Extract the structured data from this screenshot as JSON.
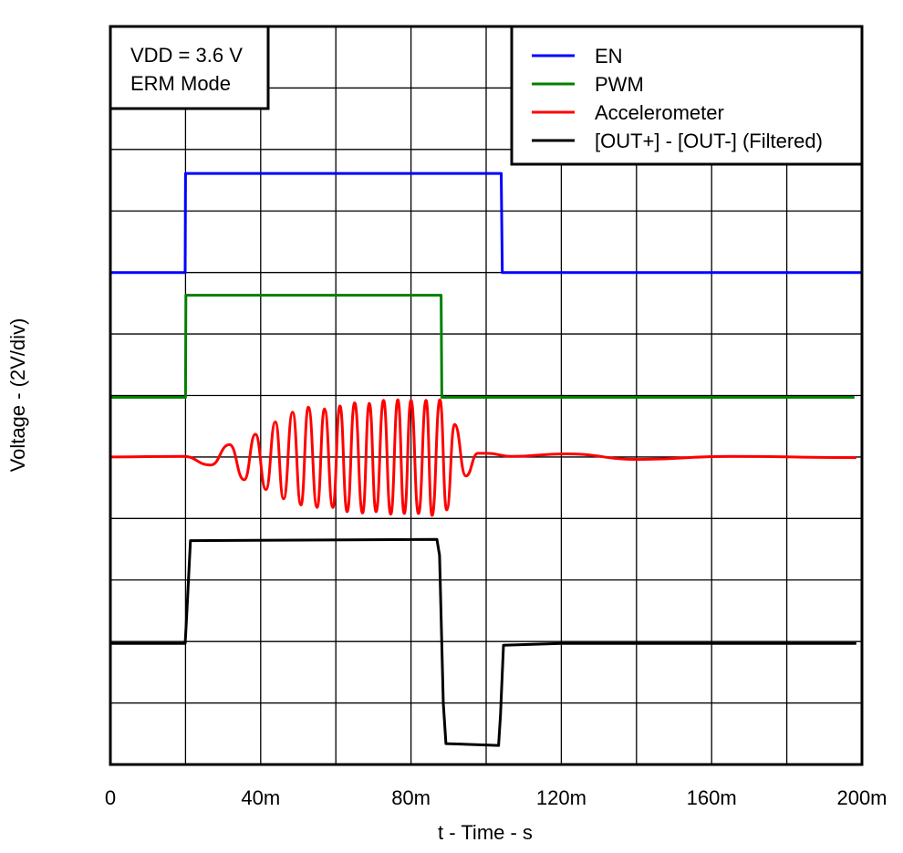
{
  "chart_data": {
    "type": "line",
    "title": "",
    "xlabel": "t - Time - s",
    "ylabel": "Voltage - (2V/div)",
    "xlim": [
      0,
      200
    ],
    "ylim_divisions": [
      0,
      12
    ],
    "x_ticks": [
      {
        "value": 0,
        "label": "0"
      },
      {
        "value": 40,
        "label": "40m"
      },
      {
        "value": 80,
        "label": "80m"
      },
      {
        "value": 120,
        "label": "120m"
      },
      {
        "value": 160,
        "label": "160m"
      },
      {
        "value": 200,
        "label": "200m"
      }
    ],
    "x_grid_step": 20,
    "y_grid_step": 1,
    "grid": true,
    "legend_position": "top-right",
    "annotation": [
      "VDD = 3.6 V",
      "ERM Mode"
    ],
    "series": [
      {
        "name": "EN",
        "color": "#0000FF",
        "smooth": false,
        "points": [
          [
            0,
            8.0
          ],
          [
            19.9,
            8.0
          ],
          [
            20.0,
            9.61
          ],
          [
            104.0,
            9.61
          ],
          [
            104.3,
            8.0
          ],
          [
            200,
            8.0
          ]
        ]
      },
      {
        "name": "PWM",
        "color": "#008000",
        "smooth": false,
        "points": [
          [
            0,
            5.97
          ],
          [
            20.0,
            5.97
          ],
          [
            20.1,
            7.63
          ],
          [
            88.0,
            7.63
          ],
          [
            88.2,
            5.97
          ],
          [
            198,
            5.97
          ]
        ]
      },
      {
        "name": "Accelerometer",
        "color": "#FF0000",
        "smooth": true,
        "points": [
          [
            0,
            5.0
          ],
          [
            19.4,
            5.01
          ],
          [
            26.7,
            4.87
          ],
          [
            31.7,
            5.2
          ],
          [
            35.6,
            4.63
          ],
          [
            38.6,
            5.37
          ],
          [
            41.4,
            4.47
          ],
          [
            43.9,
            5.57
          ],
          [
            46.1,
            4.32
          ],
          [
            48.5,
            5.73
          ],
          [
            50.7,
            4.22
          ],
          [
            52.7,
            5.81
          ],
          [
            55.0,
            4.18
          ],
          [
            57.0,
            5.78
          ],
          [
            59.2,
            4.18
          ],
          [
            61.1,
            5.83
          ],
          [
            63.0,
            4.11
          ],
          [
            65.0,
            5.88
          ],
          [
            67.1,
            4.09
          ],
          [
            68.9,
            5.87
          ],
          [
            70.7,
            4.11
          ],
          [
            72.7,
            5.92
          ],
          [
            74.6,
            4.07
          ],
          [
            76.5,
            5.93
          ],
          [
            78.2,
            4.08
          ],
          [
            80.0,
            5.92
          ],
          [
            82.0,
            4.08
          ],
          [
            84.0,
            5.92
          ],
          [
            85.6,
            4.05
          ],
          [
            87.7,
            5.93
          ],
          [
            89.5,
            4.14
          ],
          [
            91.6,
            5.53
          ],
          [
            94.6,
            4.69
          ],
          [
            97.8,
            5.06
          ],
          [
            100.2,
            5.06
          ],
          [
            106.7,
            5.01
          ],
          [
            121.2,
            5.05
          ],
          [
            140.6,
            4.96
          ],
          [
            164.8,
            5.01
          ],
          [
            198.5,
            4.99
          ]
        ]
      },
      {
        "name": "[OUT+] - [OUT-] (Filtered)",
        "color": "#000000",
        "smooth": false,
        "points": [
          [
            0,
            1.97
          ],
          [
            19.9,
            1.97
          ],
          [
            20.3,
            2.4
          ],
          [
            21.3,
            3.64
          ],
          [
            86.9,
            3.66
          ],
          [
            87.6,
            3.4
          ],
          [
            88.6,
            1.0
          ],
          [
            89.3,
            0.34
          ],
          [
            103.3,
            0.31
          ],
          [
            103.8,
            0.8
          ],
          [
            104.6,
            1.94
          ],
          [
            120,
            1.97
          ],
          [
            198.5,
            1.97
          ]
        ]
      }
    ]
  }
}
